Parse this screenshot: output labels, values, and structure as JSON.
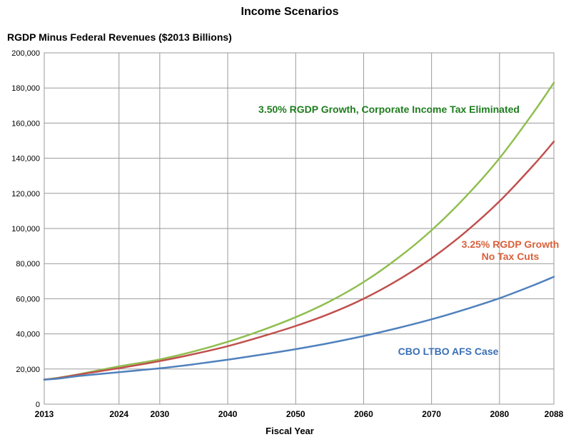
{
  "chart_data": {
    "type": "line",
    "title": "Income Scenarios",
    "ylabel": "RGDP Minus Federal Revenues ($2013 Billions)",
    "xlabel": "Fiscal Year",
    "xlim": [
      2013,
      2088
    ],
    "ylim": [
      0,
      200000
    ],
    "x_ticks": [
      2013,
      2024,
      2030,
      2040,
      2050,
      2060,
      2070,
      2080,
      2088
    ],
    "y_ticks": [
      0,
      20000,
      40000,
      60000,
      80000,
      100000,
      120000,
      140000,
      160000,
      180000,
      200000
    ],
    "y_tick_labels": [
      "0",
      "20,000",
      "40,000",
      "60,000",
      "80,000",
      "100,000",
      "120,000",
      "140,000",
      "160,000",
      "180,000",
      "200,000"
    ],
    "grid": true,
    "x": [
      2013,
      2015,
      2018,
      2024,
      2030,
      2035,
      2040,
      2045,
      2050,
      2055,
      2060,
      2065,
      2070,
      2075,
      2080,
      2085,
      2088
    ],
    "series": [
      {
        "label": "3.50% RGDP Growth, Corporate Income Tax Eliminated",
        "color": "#8fbe4f",
        "values": [
          14000,
          15000,
          17000,
          21500,
          25500,
          30000,
          35500,
          42000,
          49500,
          58500,
          69500,
          83000,
          99000,
          118000,
          140000,
          166000,
          183000
        ]
      },
      {
        "label": "3.25% RGDP Growth No Tax Cuts",
        "color": "#c0504d",
        "values": [
          14000,
          14800,
          16800,
          20500,
          24500,
          28500,
          33000,
          38500,
          44500,
          51500,
          60000,
          70500,
          83000,
          98000,
          115500,
          136000,
          149500
        ]
      },
      {
        "label": "CBO LTBO AFS Case",
        "color": "#4f81bd",
        "values": [
          14000,
          14500,
          16000,
          18200,
          20400,
          22700,
          25300,
          28200,
          31300,
          34800,
          38800,
          43300,
          48300,
          54000,
          60300,
          67700,
          72500
        ]
      }
    ],
    "annotations": [
      {
        "text": "3.50% RGDP Growth, Corporate Income Tax Eliminated",
        "color": "#1e7d1e"
      },
      {
        "text": "3.25% RGDP Growth",
        "color": "#d9603a"
      },
      {
        "text": "No Tax Cuts",
        "color": "#d9603a"
      },
      {
        "text": "CBO LTBO AFS Case",
        "color": "#3a6fb5"
      }
    ]
  }
}
